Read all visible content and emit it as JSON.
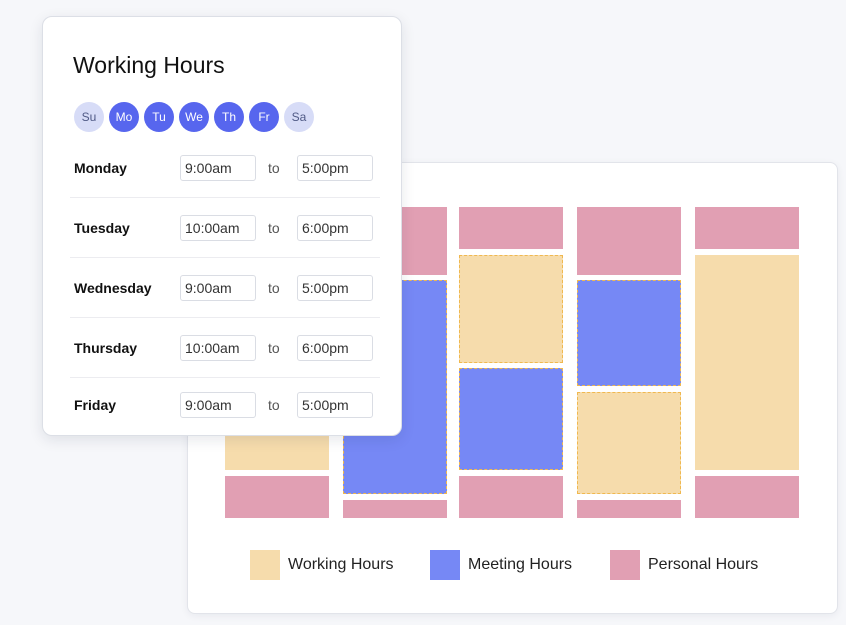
{
  "working_hours": {
    "title": "Working Hours",
    "days": [
      {
        "label": "Su",
        "selected": false
      },
      {
        "label": "Mo",
        "selected": true
      },
      {
        "label": "Tu",
        "selected": true
      },
      {
        "label": "We",
        "selected": true
      },
      {
        "label": "Th",
        "selected": true
      },
      {
        "label": "Fr",
        "selected": true
      },
      {
        "label": "Sa",
        "selected": false
      }
    ],
    "separator": "to",
    "rows": [
      {
        "day": "Monday",
        "start": "9:00am",
        "end": "5:00pm"
      },
      {
        "day": "Tuesday",
        "start": "10:00am",
        "end": "6:00pm"
      },
      {
        "day": "Wednesday",
        "start": "9:00am",
        "end": "5:00pm"
      },
      {
        "day": "Thursday",
        "start": "10:00am",
        "end": "6:00pm"
      },
      {
        "day": "Friday",
        "start": "9:00am",
        "end": "5:00pm"
      }
    ]
  },
  "legend": {
    "working": "Working Hours",
    "meeting": "Meeting Hours",
    "personal": "Personal Hours"
  },
  "colors": {
    "working": "#f6dcac",
    "meeting": "#7688f5",
    "personal": "#e19fb3",
    "accent": "#5766ee"
  }
}
